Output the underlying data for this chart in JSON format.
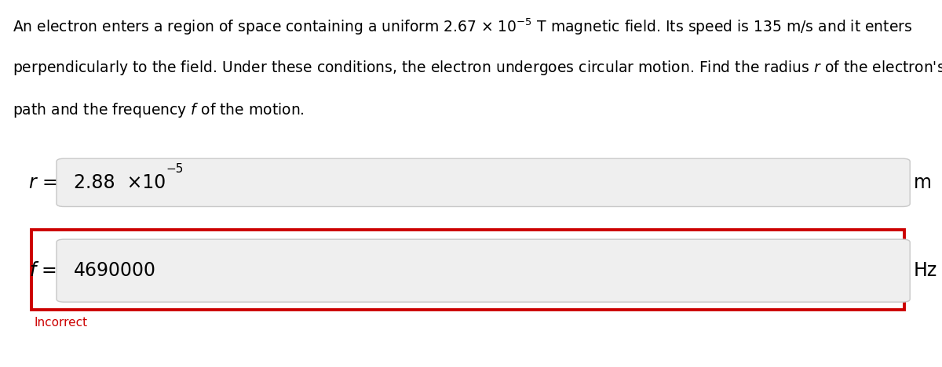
{
  "background_color": "#ffffff",
  "text_color": "#000000",
  "box_bg_color": "#efefef",
  "box_border_color": "#c8c8c8",
  "red_border_color": "#cc0000",
  "incorrect_color": "#cc0000",
  "font_size_problem": 13.5,
  "font_size_answer": 17,
  "font_size_label": 17,
  "font_size_unit": 17,
  "font_size_exponent": 11,
  "font_size_incorrect": 11,
  "problem_lines": [
    "An electron enters a region of space containing a uniform 2.67 × 10$^{-5}$ T magnetic field. Its speed is 135 m/s and it enters",
    "perpendicularly to the field. Under these conditions, the electron undergoes circular motion. Find the radius $r$ of the electron's",
    "path and the frequency $f$ of the motion."
  ],
  "r_value_text": "2.88  ×10",
  "r_exponent_text": "-5",
  "r_unit": "m",
  "f_value_text": "4690000",
  "f_unit": "Hz",
  "incorrect_text": "Incorrect"
}
